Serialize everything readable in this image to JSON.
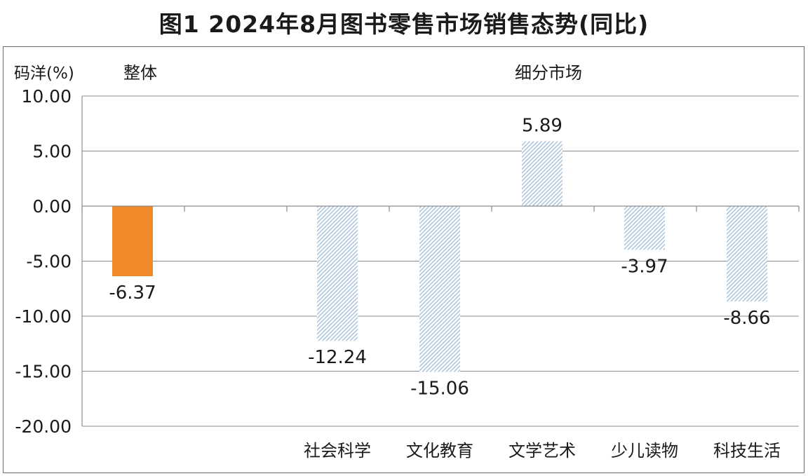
{
  "title": "图1  2024年8月图书零售市场销售态势(同比)",
  "chart_data": {
    "type": "bar",
    "ylabel": "码洋(%)",
    "group_labels": [
      "整体",
      "细分市场"
    ],
    "categories": [
      "",
      "",
      "社会科学",
      "文化教育",
      "文学艺术",
      "少儿读物",
      "科技生活"
    ],
    "values": [
      -6.37,
      null,
      -12.24,
      -15.06,
      5.89,
      -3.97,
      -8.66
    ],
    "data_labels": [
      "-6.37",
      "",
      "-12.24",
      "-15.06",
      "5.89",
      "-3.97",
      "-8.66"
    ],
    "ylim": [
      -20,
      10
    ],
    "yticks": [
      10,
      5,
      0,
      -5,
      -10,
      -15,
      -20
    ],
    "ytick_labels": [
      "10.00",
      "5.00",
      "0.00",
      "-5.00",
      "-10.00",
      "-15.00",
      "-20.00"
    ],
    "grid": true,
    "colors": {
      "overall": "#f0892a",
      "segment": "#a9c4de",
      "grid": "#8c8c8c"
    }
  }
}
